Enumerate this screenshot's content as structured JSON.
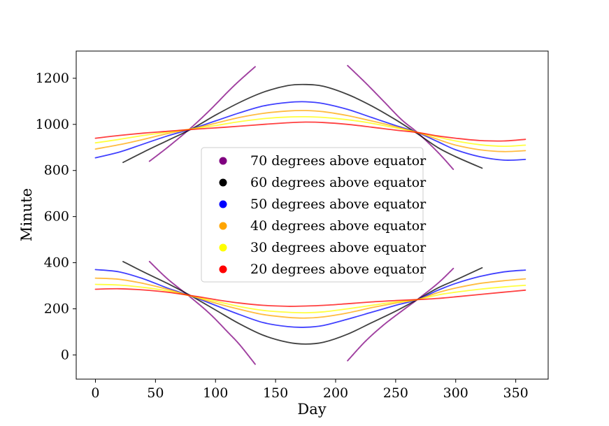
{
  "chart_data": {
    "type": "scatter",
    "title": "",
    "xlabel": "Day",
    "ylabel": "Minute",
    "xlim": [
      -16,
      377
    ],
    "ylim": [
      -105,
      1318
    ],
    "xticks": [
      0,
      50,
      100,
      150,
      200,
      250,
      300,
      350
    ],
    "yticks": [
      0,
      200,
      400,
      600,
      800,
      1000,
      1200
    ],
    "grid": false,
    "legend_position": "center",
    "series": [
      {
        "name": "70 degrees above equator",
        "color": "#800080",
        "segments": [
          {
            "x": [
              45,
              60,
              78,
              95,
              110,
              120,
              133
            ],
            "y": [
              840,
              900,
              978,
              1060,
              1140,
              1190,
              1250
            ]
          },
          {
            "x": [
              210,
              225,
              240,
              255,
              268,
              285,
              298
            ],
            "y": [
              1255,
              1180,
              1100,
              1020,
              965,
              880,
              805
            ]
          },
          {
            "x": [
              45,
              60,
              78,
              95,
              110,
              120,
              133
            ],
            "y": [
              405,
              330,
              255,
              180,
              100,
              45,
              -40
            ]
          },
          {
            "x": [
              210,
              225,
              240,
              255,
              268,
              285,
              298
            ],
            "y": [
              -25,
              60,
              130,
              190,
              240,
              310,
              375
            ]
          }
        ]
      },
      {
        "name": "60 degrees above equator",
        "color": "#000000",
        "segments": [
          {
            "x": [
              23,
              40,
              60,
              80,
              100,
              120,
              140,
              160,
              175,
              190,
              210,
              230,
              250,
              268,
              285,
              300,
              322
            ],
            "y": [
              835,
              880,
              930,
              980,
              1040,
              1095,
              1140,
              1168,
              1173,
              1165,
              1130,
              1080,
              1020,
              960,
              900,
              860,
              810
            ]
          },
          {
            "x": [
              23,
              40,
              60,
              80,
              100,
              120,
              140,
              160,
              175,
              190,
              210,
              230,
              250,
              268,
              285,
              300,
              322
            ],
            "y": [
              405,
              360,
              310,
              255,
              195,
              135,
              85,
              55,
              47,
              55,
              90,
              140,
              190,
              240,
              290,
              325,
              378
            ]
          }
        ]
      },
      {
        "name": "50 degrees above equator",
        "color": "#0000ff",
        "segments": [
          {
            "x": [
              0,
              20,
              40,
              60,
              80,
              100,
              120,
              140,
              160,
              175,
              190,
              210,
              230,
              250,
              268,
              285,
              300,
              320,
              340,
              358
            ],
            "y": [
              855,
              880,
              915,
              950,
              980,
              1015,
              1050,
              1080,
              1095,
              1098,
              1090,
              1065,
              1030,
              995,
              965,
              925,
              890,
              860,
              845,
              848
            ]
          },
          {
            "x": [
              0,
              20,
              40,
              60,
              80,
              100,
              120,
              140,
              160,
              175,
              190,
              210,
              230,
              250,
              268,
              285,
              300,
              320,
              340,
              358
            ],
            "y": [
              370,
              360,
              330,
              290,
              255,
              215,
              175,
              140,
              123,
              120,
              128,
              155,
              185,
              215,
              240,
              280,
              310,
              340,
              360,
              368
            ]
          }
        ]
      },
      {
        "name": "40 degrees above equator",
        "color": "#ffa500",
        "segments": [
          {
            "x": [
              0,
              20,
              40,
              60,
              80,
              100,
              120,
              140,
              160,
              175,
              190,
              210,
              230,
              250,
              268,
              285,
              300,
              320,
              340,
              358
            ],
            "y": [
              893,
              912,
              935,
              960,
              980,
              1005,
              1030,
              1048,
              1058,
              1060,
              1055,
              1038,
              1015,
              990,
              965,
              935,
              910,
              890,
              882,
              886
            ]
          },
          {
            "x": [
              0,
              20,
              40,
              60,
              80,
              100,
              120,
              140,
              160,
              175,
              190,
              210,
              230,
              250,
              268,
              285,
              300,
              320,
              340,
              358
            ],
            "y": [
              333,
              328,
              310,
              285,
              255,
              225,
              198,
              175,
              163,
              160,
              165,
              182,
              205,
              225,
              240,
              270,
              290,
              310,
              322,
              330
            ]
          }
        ]
      },
      {
        "name": "30 degrees above equator",
        "color": "#ffff00",
        "segments": [
          {
            "x": [
              0,
              20,
              40,
              60,
              80,
              100,
              120,
              140,
              160,
              175,
              190,
              210,
              230,
              250,
              268,
              285,
              300,
              320,
              340,
              358
            ],
            "y": [
              920,
              935,
              952,
              966,
              980,
              995,
              1012,
              1025,
              1032,
              1033,
              1030,
              1020,
              1005,
              985,
              965,
              945,
              928,
              912,
              905,
              910
            ]
          },
          {
            "x": [
              0,
              20,
              40,
              60,
              80,
              100,
              120,
              140,
              160,
              175,
              190,
              210,
              230,
              250,
              268,
              285,
              300,
              320,
              340,
              358
            ],
            "y": [
              306,
              303,
              293,
              278,
              255,
              233,
              210,
              193,
              185,
              183,
              187,
              200,
              215,
              230,
              240,
              260,
              272,
              285,
              295,
              302
            ]
          }
        ]
      },
      {
        "name": "20 degrees above equator",
        "color": "#ff0000",
        "segments": [
          {
            "x": [
              0,
              20,
              40,
              60,
              80,
              100,
              120,
              140,
              160,
              175,
              190,
              210,
              230,
              250,
              268,
              285,
              300,
              320,
              340,
              358
            ],
            "y": [
              940,
              952,
              962,
              970,
              978,
              985,
              992,
              1000,
              1007,
              1010,
              1008,
              1000,
              988,
              975,
              965,
              950,
              940,
              930,
              928,
              935
            ]
          },
          {
            "x": [
              0,
              20,
              40,
              60,
              80,
              100,
              120,
              140,
              160,
              175,
              190,
              210,
              230,
              250,
              268,
              285,
              300,
              320,
              340,
              358
            ],
            "y": [
              285,
              287,
              282,
              272,
              257,
              240,
              225,
              215,
              211,
              212,
              215,
              222,
              230,
              236,
              240,
              245,
              252,
              262,
              272,
              281
            ]
          }
        ]
      }
    ]
  }
}
